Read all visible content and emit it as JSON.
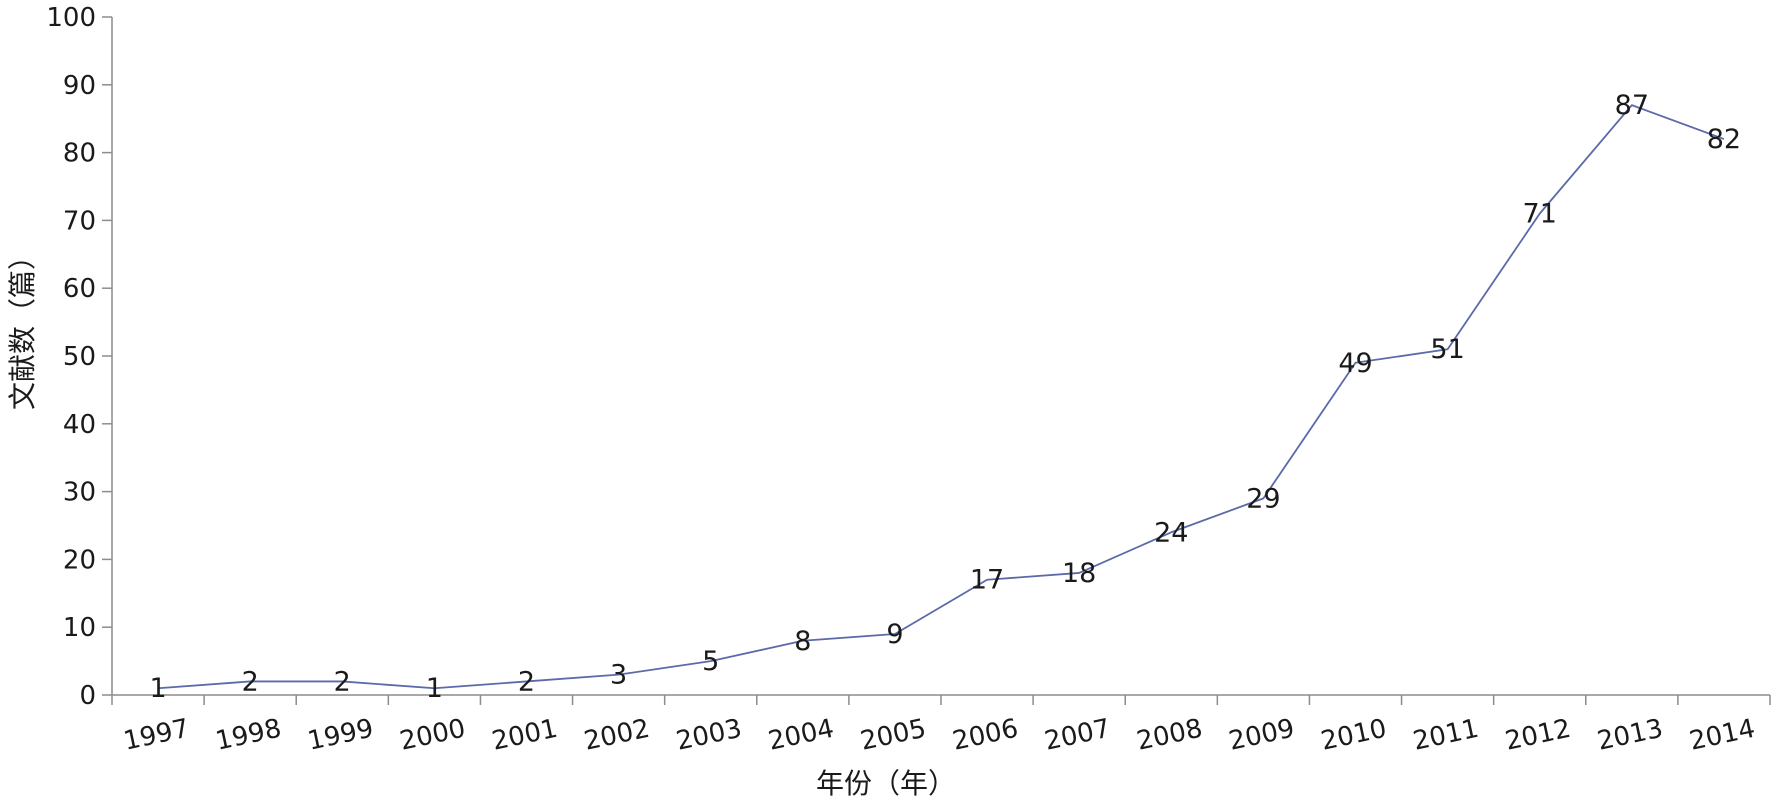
{
  "chart_data": {
    "type": "line",
    "xlabel": "年份（年）",
    "ylabel": "文献数（篇）",
    "ylim": [
      0,
      100
    ],
    "yticks": [
      0,
      10,
      20,
      30,
      40,
      50,
      60,
      70,
      80,
      90,
      100
    ],
    "categories": [
      "1997",
      "1998",
      "1999",
      "2000",
      "2001",
      "2002",
      "2003",
      "2004",
      "2005",
      "2006",
      "2007",
      "2008",
      "2009",
      "2010",
      "2011",
      "2012",
      "2013",
      "2014"
    ],
    "series": [
      {
        "values": [
          1,
          2,
          2,
          1,
          2,
          3,
          5,
          8,
          9,
          17,
          18,
          24,
          29,
          49,
          51,
          71,
          87,
          82
        ],
        "color": "#5b6aa8"
      }
    ],
    "data_labels": true,
    "grid": false,
    "legend": "none"
  }
}
